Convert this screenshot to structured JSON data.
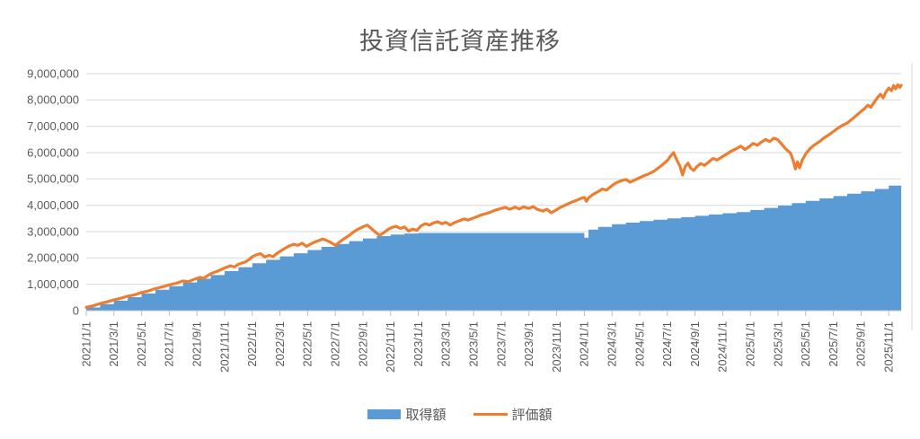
{
  "title": "投資信託資産推移",
  "legend": [
    {
      "label": "取得額",
      "type": "area",
      "color": "#5B9BD5"
    },
    {
      "label": "評価額",
      "type": "line",
      "color": "#ED7D31"
    }
  ],
  "colors": {
    "area_fill": "#5B9BD5",
    "line_stroke": "#ED7D31",
    "gridline": "#D9D9D9",
    "axis_line": "#BFBFBF",
    "text": "#595959",
    "background": "#FFFFFF"
  },
  "chart_data": {
    "type": "combo",
    "title": "投資信託資産推移",
    "currency": "JPY",
    "x_unit": "months_since_2021/1/1",
    "x_end": 58.9,
    "y_axis": {
      "min": 0,
      "max": 9000000,
      "tick_step": 1000000,
      "tick_labels": [
        "0",
        "1,000,000",
        "2,000,000",
        "3,000,000",
        "4,000,000",
        "5,000,000",
        "6,000,000",
        "7,000,000",
        "8,000,000",
        "9,000,000"
      ]
    },
    "x_axis": {
      "tick_interval_months": 2,
      "labels": [
        "2021/1/1",
        "2021/3/1",
        "2021/5/1",
        "2021/7/1",
        "2021/9/1",
        "2021/11/1",
        "2022/1/1",
        "2022/3/1",
        "2022/5/1",
        "2022/7/1",
        "2022/9/1",
        "2022/11/1",
        "2023/1/1",
        "2023/3/1",
        "2023/5/1",
        "2023/7/1",
        "2023/9/1",
        "2023/11/1",
        "2024/1/1",
        "2024/3/1",
        "2024/5/1",
        "2024/7/1",
        "2024/9/1",
        "2024/11/1",
        "2025/1/1",
        "2025/3/1",
        "2025/5/1",
        "2025/7/1",
        "2025/9/1",
        "2025/11/1"
      ]
    },
    "series": [
      {
        "name": "取得額",
        "type": "area-step",
        "color": "#5B9BD5",
        "points": [
          [
            0,
            120000
          ],
          [
            1,
            250000
          ],
          [
            2,
            380000
          ],
          [
            3,
            510000
          ],
          [
            4,
            650000
          ],
          [
            5,
            790000
          ],
          [
            6,
            930000
          ],
          [
            7,
            1070000
          ],
          [
            8,
            1210000
          ],
          [
            9,
            1350000
          ],
          [
            10,
            1500000
          ],
          [
            11,
            1650000
          ],
          [
            12,
            1800000
          ],
          [
            13,
            1930000
          ],
          [
            14,
            2060000
          ],
          [
            15,
            2180000
          ],
          [
            16,
            2300000
          ],
          [
            17,
            2420000
          ],
          [
            18,
            2530000
          ],
          [
            19,
            2640000
          ],
          [
            20,
            2740000
          ],
          [
            21,
            2830000
          ],
          [
            22,
            2890000
          ],
          [
            23,
            2930000
          ],
          [
            24,
            2950000
          ],
          [
            36,
            2770000
          ],
          [
            36.3,
            3080000
          ],
          [
            37,
            3180000
          ],
          [
            38,
            3280000
          ],
          [
            39,
            3340000
          ],
          [
            40,
            3400000
          ],
          [
            41,
            3450000
          ],
          [
            42,
            3500000
          ],
          [
            43,
            3550000
          ],
          [
            44,
            3600000
          ],
          [
            45,
            3650000
          ],
          [
            46,
            3700000
          ],
          [
            47,
            3740000
          ],
          [
            48,
            3820000
          ],
          [
            49,
            3900000
          ],
          [
            50,
            3990000
          ],
          [
            51,
            4080000
          ],
          [
            52,
            4170000
          ],
          [
            53,
            4260000
          ],
          [
            54,
            4350000
          ],
          [
            55,
            4440000
          ],
          [
            56,
            4530000
          ],
          [
            57,
            4620000
          ],
          [
            58,
            4750000
          ],
          [
            58.9,
            4750000
          ]
        ]
      },
      {
        "name": "評価額",
        "type": "line",
        "color": "#ED7D31",
        "points": [
          [
            0,
            130000
          ],
          [
            0.5,
            180000
          ],
          [
            1,
            270000
          ],
          [
            1.5,
            330000
          ],
          [
            2,
            410000
          ],
          [
            2.5,
            470000
          ],
          [
            3,
            550000
          ],
          [
            3.5,
            600000
          ],
          [
            4,
            690000
          ],
          [
            4.5,
            750000
          ],
          [
            5,
            840000
          ],
          [
            5.5,
            900000
          ],
          [
            6,
            980000
          ],
          [
            6.5,
            1040000
          ],
          [
            7,
            1130000
          ],
          [
            7.4,
            1100000
          ],
          [
            7.8,
            1190000
          ],
          [
            8.2,
            1260000
          ],
          [
            8.5,
            1230000
          ],
          [
            9,
            1400000
          ],
          [
            9.5,
            1500000
          ],
          [
            10,
            1620000
          ],
          [
            10.4,
            1700000
          ],
          [
            10.7,
            1660000
          ],
          [
            11,
            1760000
          ],
          [
            11.5,
            1850000
          ],
          [
            11.8,
            1950000
          ],
          [
            12,
            2050000
          ],
          [
            12.3,
            2120000
          ],
          [
            12.6,
            2160000
          ],
          [
            12.9,
            2040000
          ],
          [
            13.2,
            2100000
          ],
          [
            13.5,
            2050000
          ],
          [
            13.8,
            2180000
          ],
          [
            14.1,
            2280000
          ],
          [
            14.4,
            2380000
          ],
          [
            14.7,
            2460000
          ],
          [
            15,
            2520000
          ],
          [
            15.3,
            2480000
          ],
          [
            15.6,
            2560000
          ],
          [
            15.9,
            2440000
          ],
          [
            16.2,
            2520000
          ],
          [
            16.5,
            2600000
          ],
          [
            16.8,
            2660000
          ],
          [
            17.1,
            2720000
          ],
          [
            17.4,
            2660000
          ],
          [
            17.7,
            2580000
          ],
          [
            18,
            2480000
          ],
          [
            18.3,
            2600000
          ],
          [
            18.6,
            2720000
          ],
          [
            19,
            2850000
          ],
          [
            19.3,
            2980000
          ],
          [
            19.6,
            3080000
          ],
          [
            20,
            3180000
          ],
          [
            20.3,
            3250000
          ],
          [
            20.6,
            3120000
          ],
          [
            20.9,
            2980000
          ],
          [
            21.2,
            2860000
          ],
          [
            21.5,
            2960000
          ],
          [
            21.8,
            3080000
          ],
          [
            22.1,
            3160000
          ],
          [
            22.4,
            3200000
          ],
          [
            22.7,
            3120000
          ],
          [
            23,
            3180000
          ],
          [
            23.3,
            3020000
          ],
          [
            23.6,
            3100000
          ],
          [
            23.9,
            3050000
          ],
          [
            24.2,
            3220000
          ],
          [
            24.5,
            3300000
          ],
          [
            24.8,
            3250000
          ],
          [
            25.1,
            3330000
          ],
          [
            25.4,
            3380000
          ],
          [
            25.7,
            3300000
          ],
          [
            26,
            3350000
          ],
          [
            26.3,
            3250000
          ],
          [
            26.6,
            3340000
          ],
          [
            27,
            3420000
          ],
          [
            27.3,
            3480000
          ],
          [
            27.6,
            3440000
          ],
          [
            28,
            3520000
          ],
          [
            28.3,
            3580000
          ],
          [
            28.6,
            3640000
          ],
          [
            29,
            3700000
          ],
          [
            29.3,
            3760000
          ],
          [
            29.6,
            3820000
          ],
          [
            30,
            3880000
          ],
          [
            30.3,
            3920000
          ],
          [
            30.6,
            3850000
          ],
          [
            31,
            3930000
          ],
          [
            31.3,
            3860000
          ],
          [
            31.6,
            3940000
          ],
          [
            32,
            3880000
          ],
          [
            32.3,
            3950000
          ],
          [
            32.6,
            3850000
          ],
          [
            33,
            3780000
          ],
          [
            33.3,
            3850000
          ],
          [
            33.6,
            3720000
          ],
          [
            33.9,
            3800000
          ],
          [
            34.2,
            3900000
          ],
          [
            34.5,
            3980000
          ],
          [
            34.8,
            4050000
          ],
          [
            35.1,
            4120000
          ],
          [
            35.4,
            4180000
          ],
          [
            35.7,
            4250000
          ],
          [
            36,
            4300000
          ],
          [
            36.15,
            4150000
          ],
          [
            36.3,
            4280000
          ],
          [
            36.6,
            4400000
          ],
          [
            37,
            4520000
          ],
          [
            37.3,
            4620000
          ],
          [
            37.6,
            4580000
          ],
          [
            38,
            4750000
          ],
          [
            38.3,
            4850000
          ],
          [
            38.6,
            4920000
          ],
          [
            39,
            4980000
          ],
          [
            39.3,
            4880000
          ],
          [
            39.6,
            4950000
          ],
          [
            40,
            5050000
          ],
          [
            40.3,
            5120000
          ],
          [
            40.6,
            5180000
          ],
          [
            41,
            5280000
          ],
          [
            41.3,
            5400000
          ],
          [
            41.6,
            5520000
          ],
          [
            42,
            5700000
          ],
          [
            42.2,
            5850000
          ],
          [
            42.45,
            6000000
          ],
          [
            42.7,
            5700000
          ],
          [
            42.9,
            5500000
          ],
          [
            43.1,
            5150000
          ],
          [
            43.3,
            5480000
          ],
          [
            43.5,
            5600000
          ],
          [
            43.7,
            5400000
          ],
          [
            43.9,
            5320000
          ],
          [
            44.1,
            5450000
          ],
          [
            44.4,
            5580000
          ],
          [
            44.7,
            5520000
          ],
          [
            45,
            5650000
          ],
          [
            45.3,
            5780000
          ],
          [
            45.6,
            5720000
          ],
          [
            46,
            5850000
          ],
          [
            46.3,
            5950000
          ],
          [
            46.6,
            6050000
          ],
          [
            47,
            6150000
          ],
          [
            47.3,
            6250000
          ],
          [
            47.6,
            6120000
          ],
          [
            47.9,
            6220000
          ],
          [
            48.2,
            6350000
          ],
          [
            48.5,
            6280000
          ],
          [
            48.8,
            6400000
          ],
          [
            49.1,
            6500000
          ],
          [
            49.4,
            6420000
          ],
          [
            49.7,
            6550000
          ],
          [
            50,
            6480000
          ],
          [
            50.3,
            6300000
          ],
          [
            50.6,
            6120000
          ],
          [
            50.9,
            5980000
          ],
          [
            51.1,
            5700000
          ],
          [
            51.25,
            5380000
          ],
          [
            51.4,
            5650000
          ],
          [
            51.55,
            5420000
          ],
          [
            51.75,
            5720000
          ],
          [
            52,
            5950000
          ],
          [
            52.3,
            6150000
          ],
          [
            52.6,
            6280000
          ],
          [
            53,
            6420000
          ],
          [
            53.3,
            6550000
          ],
          [
            53.6,
            6650000
          ],
          [
            54,
            6800000
          ],
          [
            54.3,
            6920000
          ],
          [
            54.6,
            7020000
          ],
          [
            55,
            7120000
          ],
          [
            55.3,
            7250000
          ],
          [
            55.6,
            7380000
          ],
          [
            55.9,
            7520000
          ],
          [
            56.2,
            7650000
          ],
          [
            56.5,
            7800000
          ],
          [
            56.7,
            7720000
          ],
          [
            57,
            7950000
          ],
          [
            57.2,
            8100000
          ],
          [
            57.4,
            8220000
          ],
          [
            57.6,
            8080000
          ],
          [
            57.8,
            8300000
          ],
          [
            58,
            8450000
          ],
          [
            58.2,
            8350000
          ],
          [
            58.35,
            8550000
          ],
          [
            58.5,
            8420000
          ],
          [
            58.65,
            8580000
          ],
          [
            58.8,
            8480000
          ],
          [
            58.9,
            8560000
          ]
        ]
      }
    ]
  }
}
